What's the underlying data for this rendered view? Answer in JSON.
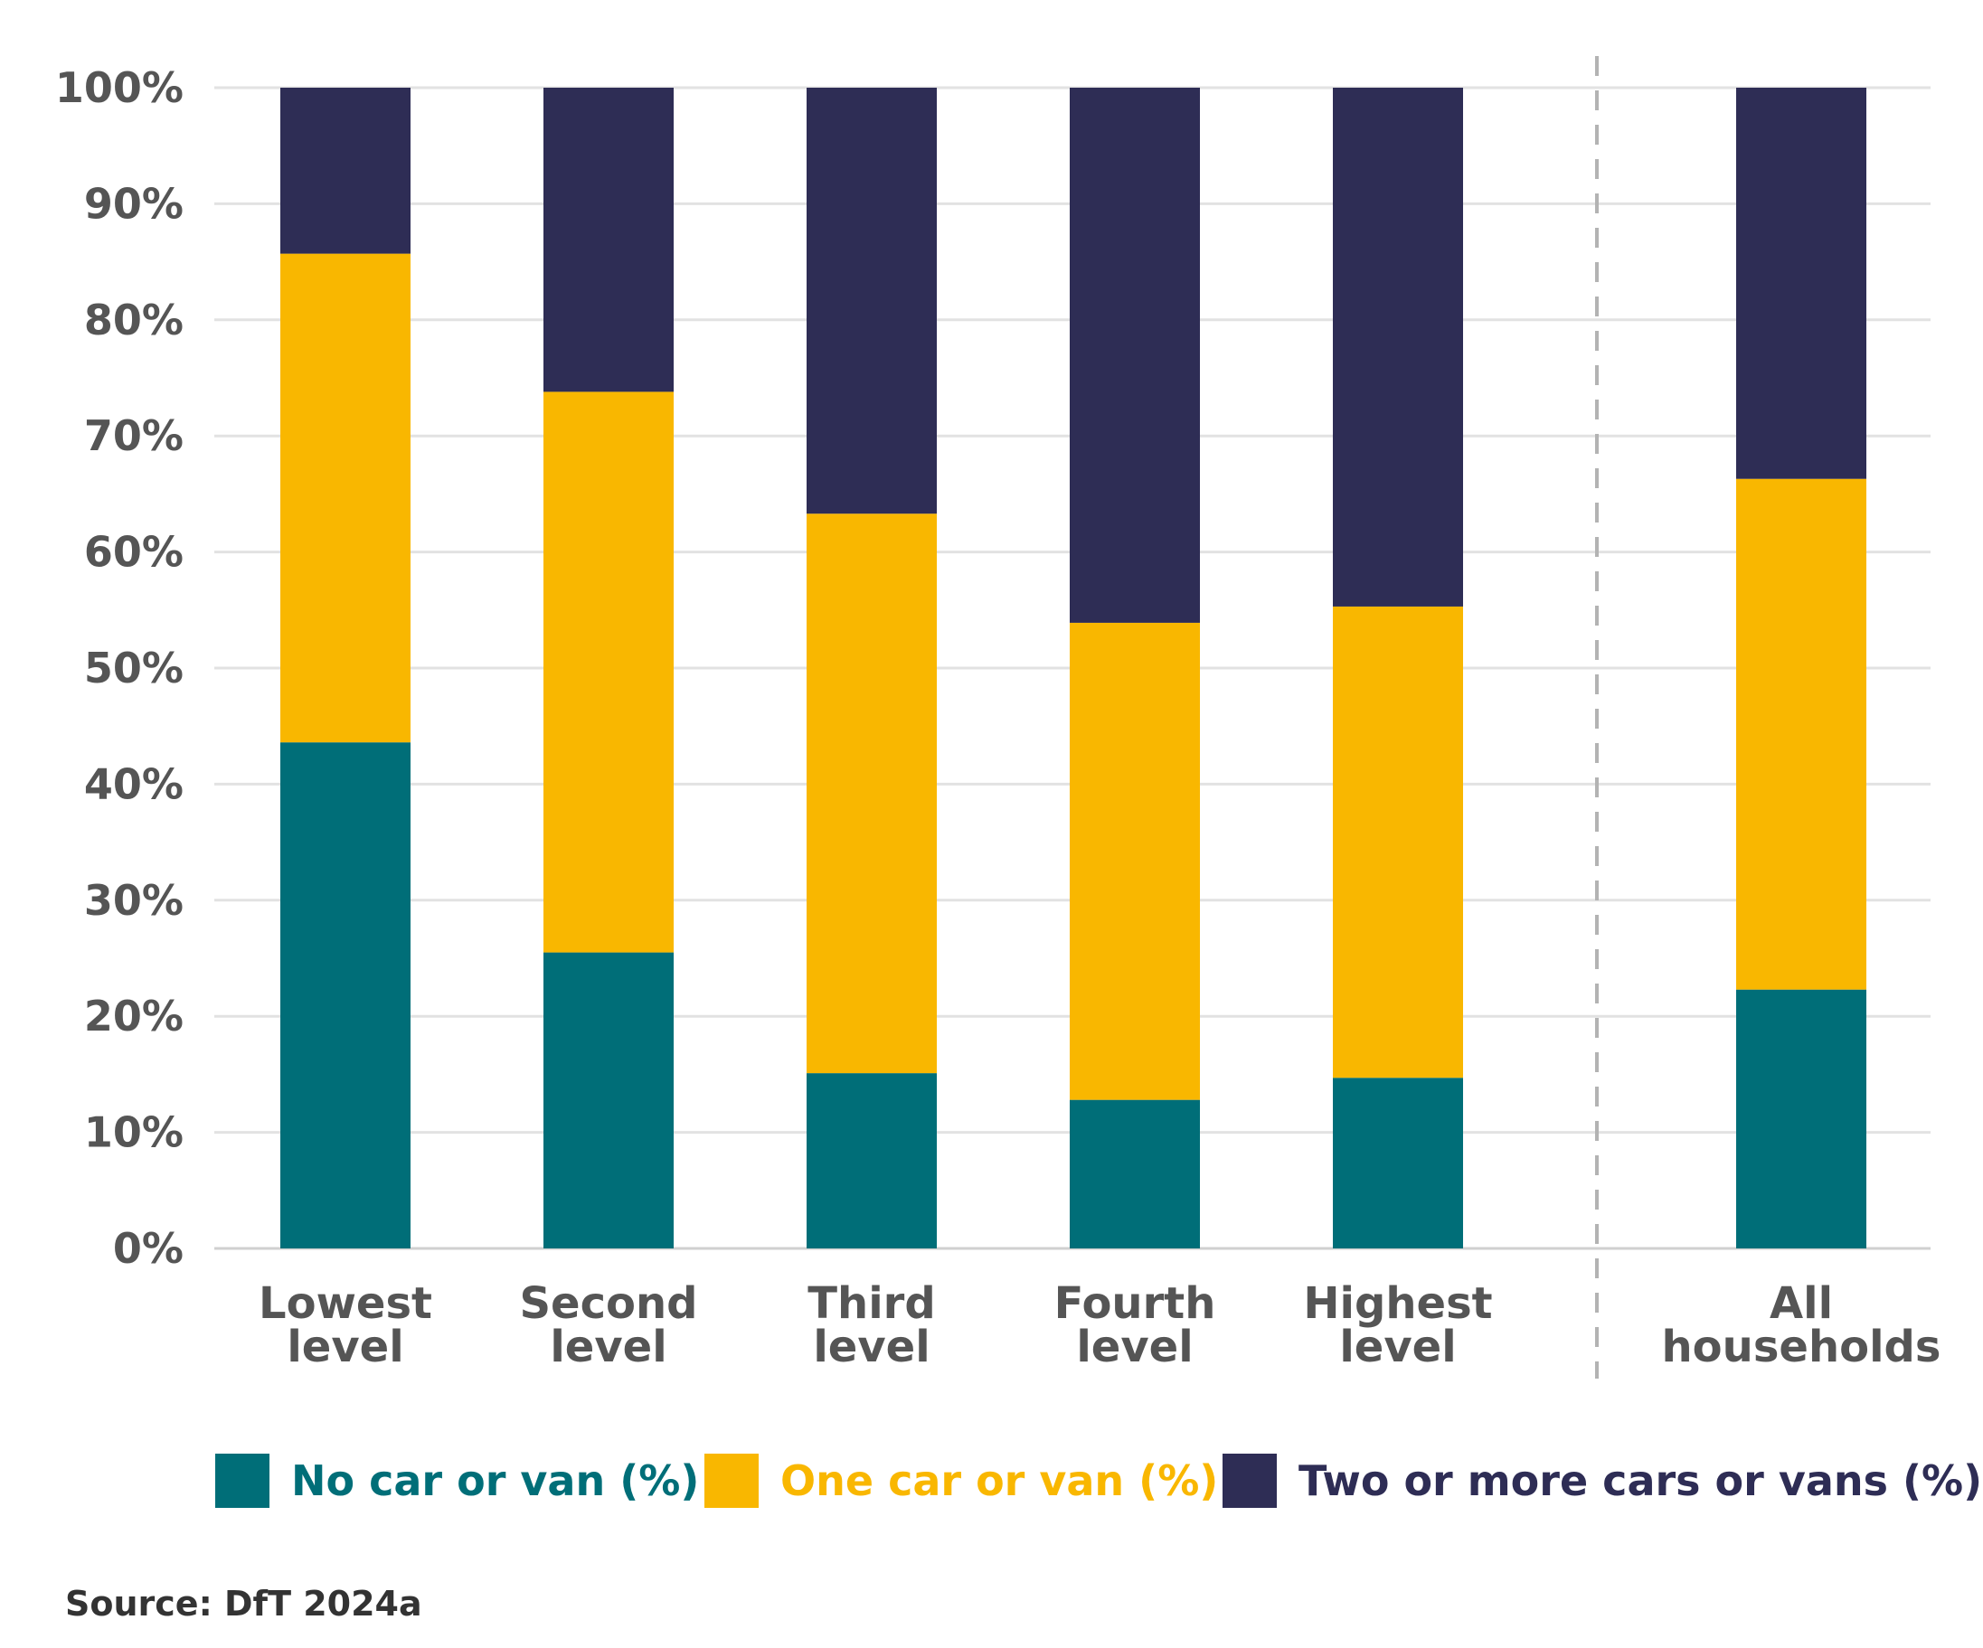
{
  "chart_data": {
    "type": "bar",
    "stacked": true,
    "percent_axis": true,
    "categories": [
      [
        "Lowest",
        "level"
      ],
      [
        "Second",
        "level"
      ],
      [
        "Third",
        "level"
      ],
      [
        "Fourth",
        "level"
      ],
      [
        "Highest",
        "level"
      ],
      [
        "All",
        "households"
      ]
    ],
    "series": [
      {
        "name": "No car or van (%)",
        "color": "#006e78",
        "values": [
          43.6,
          25.5,
          15.1,
          12.8,
          14.7,
          22.3
        ]
      },
      {
        "name": "One car or van (%)",
        "color": "#f9b700",
        "values": [
          42.1,
          48.3,
          48.2,
          41.1,
          40.6,
          44.0
        ]
      },
      {
        "name": "Two or more cars or vans (%)",
        "color": "#2e2d55",
        "values": [
          14.3,
          26.2,
          36.7,
          46.1,
          44.7,
          33.7
        ]
      }
    ],
    "y_ticks": [
      "0%",
      "10%",
      "20%",
      "30%",
      "40%",
      "50%",
      "60%",
      "70%",
      "80%",
      "90%",
      "100%"
    ],
    "ylim": [
      0,
      100
    ],
    "grid": true,
    "separator_before_category": 5,
    "legend_position": "bottom",
    "xlabel": "",
    "ylabel": ""
  },
  "source": "Source: DfT 2024a"
}
